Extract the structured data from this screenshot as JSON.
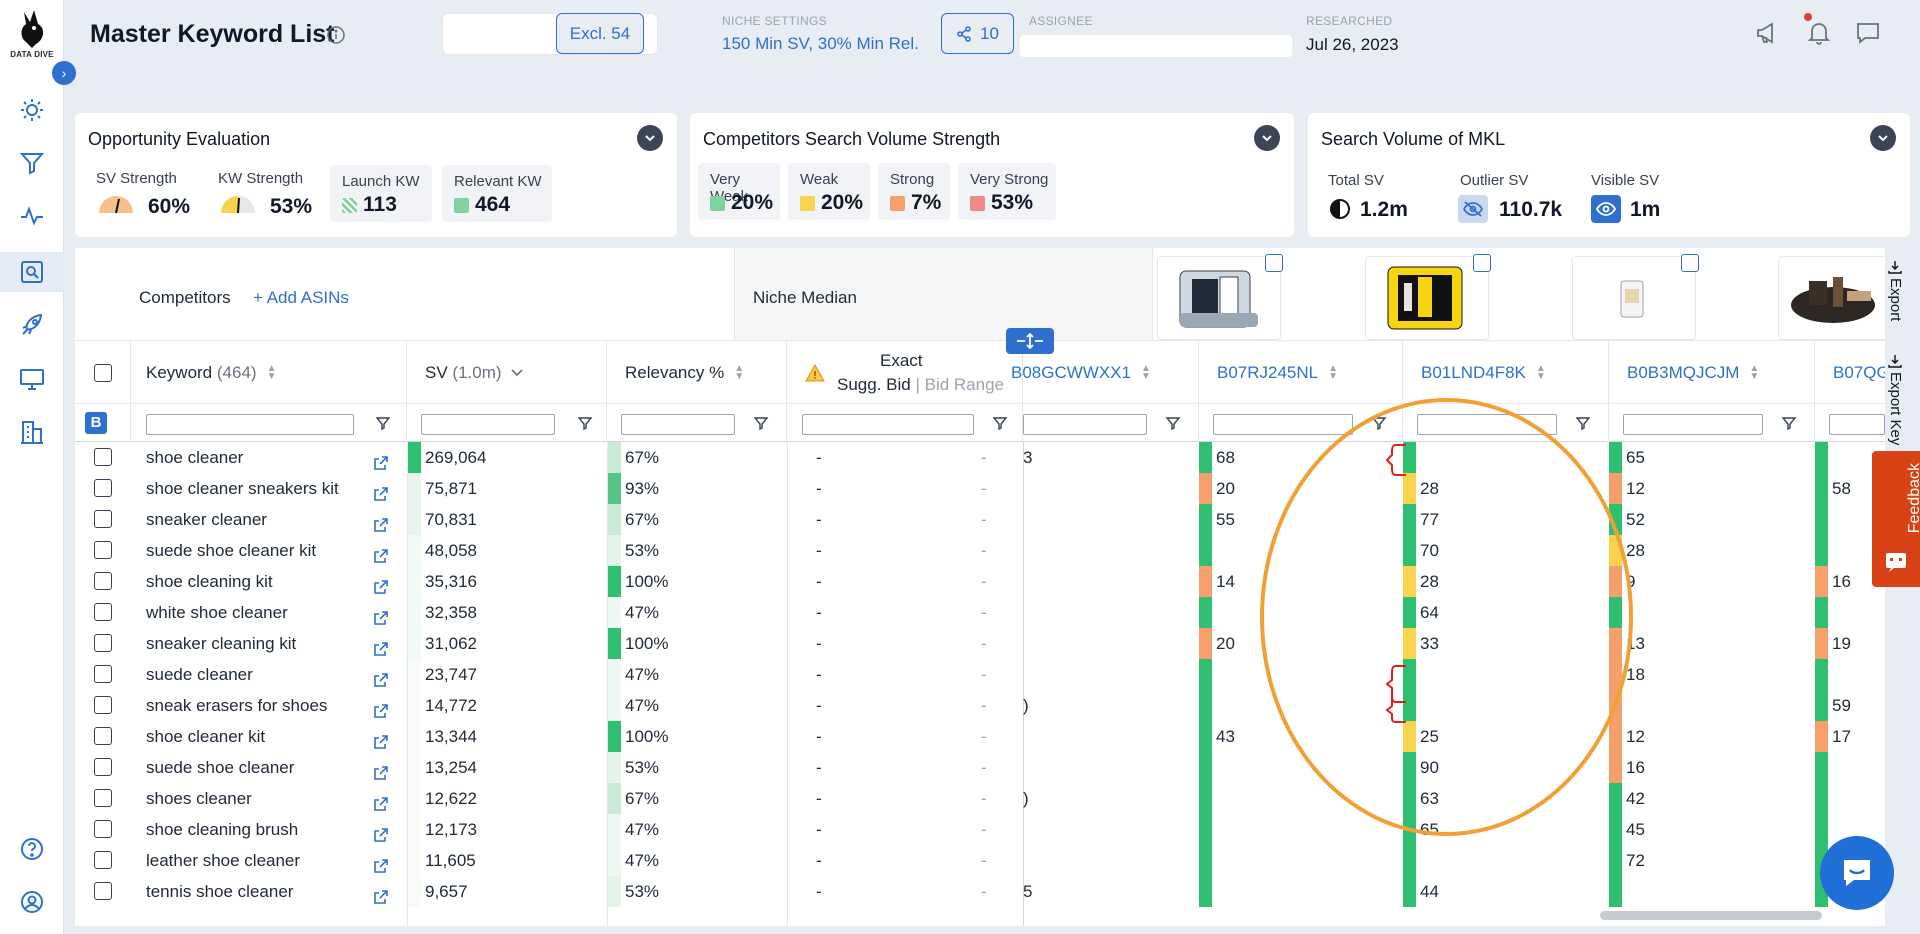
{
  "app": {
    "logo_text": "DATA DIVE"
  },
  "header": {
    "title": "Master Keyword List",
    "excl_label": "Excl. 54",
    "niche_settings_label": "NICHE SETTINGS",
    "niche_settings_value": "150 Min SV, 30% Min Rel.",
    "share_count": "10",
    "assignee_label": "ASSIGNEE",
    "researched_label": "RESEARCHED",
    "researched_value": "Jul 26, 2023"
  },
  "opportunity": {
    "title": "Opportunity Evaluation",
    "sv_strength_label": "SV Strength",
    "sv_strength_value": "60%",
    "kw_strength_label": "KW Strength",
    "kw_strength_value": "53%",
    "launch_kw_label": "Launch KW",
    "launch_kw_value": "113",
    "relevant_kw_label": "Relevant KW",
    "relevant_kw_value": "464"
  },
  "competitors_sv": {
    "title": "Competitors Search Volume Strength",
    "items": [
      {
        "label": "Very Weak",
        "value": "20%",
        "color": "#7fd3a1"
      },
      {
        "label": "Weak",
        "value": "20%",
        "color": "#f7d44c"
      },
      {
        "label": "Strong",
        "value": "7%",
        "color": "#f5a06a"
      },
      {
        "label": "Very Strong",
        "value": "53%",
        "color": "#f08a8a"
      }
    ]
  },
  "sv_mkl": {
    "title": "Search Volume of MKL",
    "total_label": "Total SV",
    "total_value": "1.2m",
    "outlier_label": "Outlier SV",
    "outlier_value": "110.7k",
    "visible_label": "Visible SV",
    "visible_value": "1m"
  },
  "grid": {
    "competitors_label": "Competitors",
    "add_asins_label": "+ Add ASINs",
    "niche_median_label": "Niche Median",
    "filter_badge": "B",
    "columns": {
      "keyword": "Keyword",
      "keyword_count": "(464)",
      "sv": "SV",
      "sv_total": "(1.0m)",
      "relevancy": "Relevancy %",
      "exact": "Exact",
      "sugg_bid": "Sugg. Bid",
      "bid_range": "Bid Range",
      "asin1": "B08GCWWXX1",
      "asin2": "B07RJ245NL",
      "asin3": "B01LND4F8K",
      "asin4": "B0B3MQJCJM",
      "asin5": "B07QG"
    },
    "export_1": "Export",
    "export_2": "Export Key",
    "rows": [
      {
        "kw": "shoe cleaner",
        "sv": "269,064",
        "rel": "67%",
        "bid": "-",
        "range": "-",
        "a1": "3",
        "a2": "68",
        "a3": "",
        "a4": "65",
        "a5": "",
        "svc": "#2fbf71",
        "relc": "#c8ead6",
        "a2c": "#2fbf71",
        "a3c": "#2fbf71",
        "a4c": "#2fbf71",
        "a5c": "#2fbf71"
      },
      {
        "kw": "shoe cleaner sneakers kit",
        "sv": "75,871",
        "rel": "93%",
        "bid": "-",
        "range": "-",
        "a1": "",
        "a2": "20",
        "a3": "28",
        "a4": "12",
        "a5": "58",
        "svc": "#e7f5ec",
        "relc": "#57c487",
        "a2c": "#f5a06a",
        "a3c": "#f7d44c",
        "a4c": "#f5a06a",
        "a5c": "#2fbf71"
      },
      {
        "kw": "sneaker cleaner",
        "sv": "70,831",
        "rel": "67%",
        "bid": "-",
        "range": "-",
        "a1": "",
        "a2": "55",
        "a3": "77",
        "a4": "52",
        "a5": "",
        "svc": "#e7f5ec",
        "relc": "#c8ead6",
        "a2c": "#2fbf71",
        "a3c": "#2fbf71",
        "a4c": "#2fbf71",
        "a5c": "#2fbf71"
      },
      {
        "kw": "suede shoe cleaner kit",
        "sv": "48,058",
        "rel": "53%",
        "bid": "-",
        "range": "-",
        "a1": "",
        "a2": "",
        "a3": "70",
        "a4": "28",
        "a5": "",
        "svc": "#f1f9f4",
        "relc": "#e4f4ea",
        "a2c": "#2fbf71",
        "a3c": "#2fbf71",
        "a4c": "#f7d44c",
        "a5c": "#2fbf71"
      },
      {
        "kw": "shoe cleaning kit",
        "sv": "35,316",
        "rel": "100%",
        "bid": "-",
        "range": "-",
        "a1": "",
        "a2": "14",
        "a3": "28",
        "a4": "9",
        "a5": "16",
        "svc": "#f1f9f4",
        "relc": "#2fbf71",
        "a2c": "#f5a06a",
        "a3c": "#f7d44c",
        "a4c": "#f5a06a",
        "a5c": "#f5a06a"
      },
      {
        "kw": "white shoe cleaner",
        "sv": "32,358",
        "rel": "47%",
        "bid": "-",
        "range": "-",
        "a1": "",
        "a2": "",
        "a3": "64",
        "a4": "",
        "a5": "",
        "svc": "#f1f9f4",
        "relc": "#eef8f2",
        "a2c": "#2fbf71",
        "a3c": "#2fbf71",
        "a4c": "#2fbf71",
        "a5c": "#2fbf71"
      },
      {
        "kw": "sneaker cleaning kit",
        "sv": "31,062",
        "rel": "100%",
        "bid": "-",
        "range": "-",
        "a1": "",
        "a2": "20",
        "a3": "33",
        "a4": "13",
        "a5": "19",
        "svc": "#f1f9f4",
        "relc": "#2fbf71",
        "a2c": "#f5a06a",
        "a3c": "#f7d44c",
        "a4c": "#f5a06a",
        "a5c": "#f5a06a"
      },
      {
        "kw": "suede cleaner",
        "sv": "23,747",
        "rel": "47%",
        "bid": "-",
        "range": "-",
        "a1": "",
        "a2": "",
        "a3": "",
        "a4": "18",
        "a5": "",
        "svc": "#f6fbf8",
        "relc": "#eef8f2",
        "a2c": "#2fbf71",
        "a3c": "#2fbf71",
        "a4c": "#f5a06a",
        "a5c": "#2fbf71"
      },
      {
        "kw": "sneak erasers for shoes",
        "sv": "14,772",
        "rel": "47%",
        "bid": "-",
        "range": "-",
        "a1": ")",
        "a2": "",
        "a3": "",
        "a4": "",
        "a5": "59",
        "svc": "#f6fbf8",
        "relc": "#eef8f2",
        "a2c": "#2fbf71",
        "a3c": "#2fbf71",
        "a4c": "#f5a06a",
        "a5c": "#2fbf71"
      },
      {
        "kw": "shoe cleaner kit",
        "sv": "13,344",
        "rel": "100%",
        "bid": "-",
        "range": "-",
        "a1": "",
        "a2": "43",
        "a3": "25",
        "a4": "12",
        "a5": "17",
        "svc": "#f6fbf8",
        "relc": "#2fbf71",
        "a2c": "#2fbf71",
        "a3c": "#f7d44c",
        "a4c": "#f5a06a",
        "a5c": "#f5a06a"
      },
      {
        "kw": "suede shoe cleaner",
        "sv": "13,254",
        "rel": "53%",
        "bid": "-",
        "range": "-",
        "a1": "",
        "a2": "",
        "a3": "90",
        "a4": "16",
        "a5": "",
        "svc": "#f6fbf8",
        "relc": "#e4f4ea",
        "a2c": "#2fbf71",
        "a3c": "#2fbf71",
        "a4c": "#f5a06a",
        "a5c": "#2fbf71"
      },
      {
        "kw": "shoes cleaner",
        "sv": "12,622",
        "rel": "67%",
        "bid": "-",
        "range": "-",
        "a1": ")",
        "a2": "",
        "a3": "63",
        "a4": "42",
        "a5": "",
        "svc": "#f6fbf8",
        "relc": "#c8ead6",
        "a2c": "#2fbf71",
        "a3c": "#2fbf71",
        "a4c": "#2fbf71",
        "a5c": "#2fbf71"
      },
      {
        "kw": "shoe cleaning brush",
        "sv": "12,173",
        "rel": "47%",
        "bid": "-",
        "range": "-",
        "a1": "",
        "a2": "",
        "a3": "65",
        "a4": "45",
        "a5": "",
        "svc": "#f6fbf8",
        "relc": "#eef8f2",
        "a2c": "#2fbf71",
        "a3c": "#2fbf71",
        "a4c": "#2fbf71",
        "a5c": "#2fbf71"
      },
      {
        "kw": "leather shoe cleaner",
        "sv": "11,605",
        "rel": "47%",
        "bid": "-",
        "range": "-",
        "a1": "",
        "a2": "",
        "a3": "",
        "a4": "72",
        "a5": "",
        "svc": "#f6fbf8",
        "relc": "#eef8f2",
        "a2c": "#2fbf71",
        "a3c": "#2fbf71",
        "a4c": "#2fbf71",
        "a5c": "#2fbf71"
      },
      {
        "kw": "tennis shoe cleaner",
        "sv": "9,657",
        "rel": "53%",
        "bid": "-",
        "range": "-",
        "a1": "5",
        "a2": "",
        "a3": "44",
        "a4": "",
        "a5": "",
        "svc": "#f6fbf8",
        "relc": "#e4f4ea",
        "a2c": "#2fbf71",
        "a3c": "#2fbf71",
        "a4c": "#2fbf71",
        "a5c": "#2fbf71"
      }
    ]
  },
  "feedback_label": "Feedback"
}
